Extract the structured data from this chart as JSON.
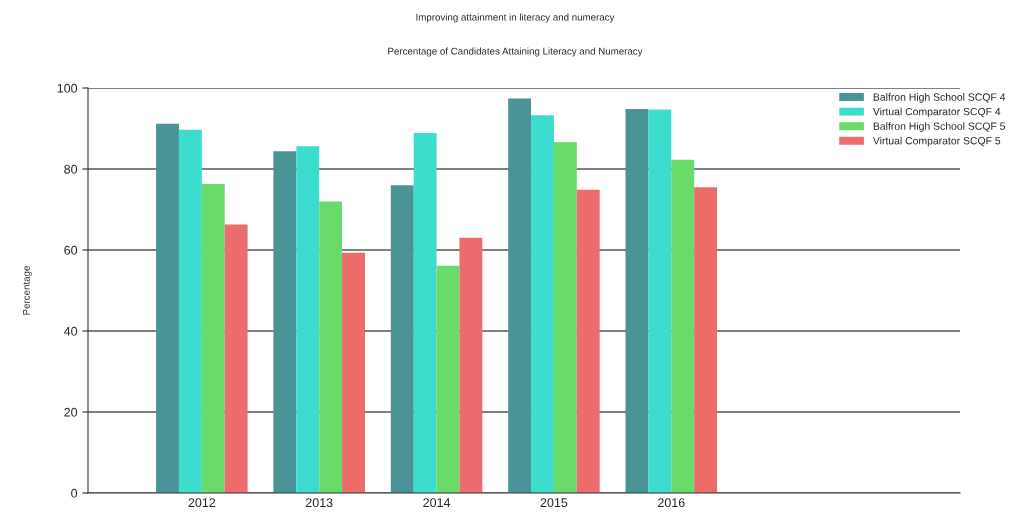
{
  "chart_data": {
    "type": "bar",
    "title": "Improving attainment in literacy and numeracy",
    "subtitle": "Percentage of Candidates Attaining Literacy and Numeracy",
    "ylabel": "Percentage",
    "categories": [
      "2012",
      "2013",
      "2014",
      "2015",
      "2016"
    ],
    "series": [
      {
        "name": "Balfron High School SCQF 4",
        "color": "#4a9497",
        "values": [
          91.2,
          84.4,
          76.0,
          97.4,
          94.8
        ]
      },
      {
        "name": "Virtual Comparator SCQF 4",
        "color": "#3cdccf",
        "values": [
          89.7,
          85.6,
          88.9,
          93.3,
          94.7
        ]
      },
      {
        "name": "Balfron High School SCQF 5",
        "color": "#6ada6a",
        "values": [
          76.3,
          72.0,
          56.1,
          86.6,
          82.3
        ]
      },
      {
        "name": "Virtual Comparator SCQF 5",
        "color": "#ec6b6b",
        "values": [
          66.3,
          59.3,
          63.0,
          74.9,
          75.5
        ]
      }
    ],
    "ylim": [
      0,
      100
    ],
    "yticks": [
      0,
      20,
      40,
      60,
      80,
      100
    ],
    "grid": "y",
    "legend": "top right"
  }
}
